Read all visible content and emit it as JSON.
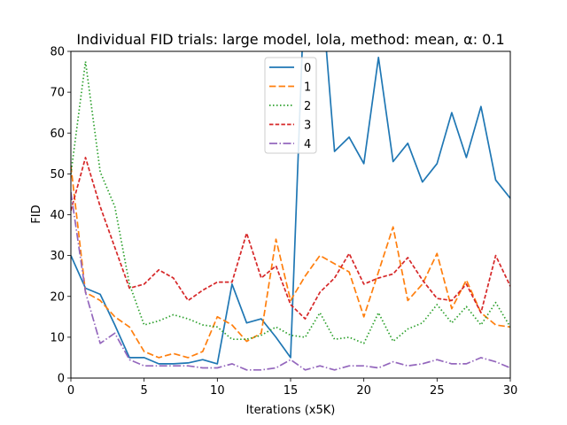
{
  "chart_data": {
    "type": "line",
    "title": "Individual FID trials: large model, lola, method: mean, α: 0.1",
    "xlabel": "Iterations (x5K)",
    "ylabel": "FID",
    "xlim": [
      0,
      30
    ],
    "ylim": [
      0,
      80
    ],
    "xticks": [
      "0",
      "5",
      "10",
      "15",
      "20",
      "25",
      "30"
    ],
    "yticks": [
      "0",
      "10",
      "20",
      "30",
      "40",
      "50",
      "60",
      "70",
      "80"
    ],
    "grid": false,
    "legend_position": "top-center",
    "x": [
      0,
      1,
      2,
      3,
      4,
      5,
      6,
      7,
      8,
      9,
      10,
      11,
      12,
      13,
      14,
      15,
      16,
      17,
      18,
      19,
      20,
      21,
      22,
      23,
      24,
      25,
      26,
      27,
      28,
      29,
      30
    ],
    "series": [
      {
        "name": "0",
        "color": "#1f77b4",
        "dash": "solid",
        "values": [
          30,
          22,
          20.5,
          13,
          5,
          5,
          3.5,
          3.5,
          3.7,
          4.5,
          3.5,
          23,
          13.5,
          14.5,
          10,
          5,
          100,
          100,
          55.5,
          59,
          52.5,
          78.5,
          53,
          57.5,
          48,
          52.5,
          65,
          54,
          66.5,
          48.5,
          44
        ]
      },
      {
        "name": "1",
        "color": "#ff7f0e",
        "dash": "dashed",
        "values": [
          52,
          21,
          19,
          15,
          12.5,
          6.5,
          5,
          6,
          5,
          6.5,
          15,
          13,
          9,
          11,
          34,
          19,
          25,
          30,
          28,
          26,
          15,
          26,
          37,
          19,
          23,
          30.5,
          17,
          24,
          16,
          13,
          12.5
        ]
      },
      {
        "name": "2",
        "color": "#2ca02c",
        "dash": "dotted",
        "values": [
          50,
          77.5,
          50.5,
          42,
          23,
          13,
          14,
          15.5,
          14.5,
          13,
          12.5,
          9.5,
          9.5,
          10.5,
          12.5,
          10.5,
          10,
          16,
          9.5,
          10,
          8.5,
          16,
          9,
          12,
          13.5,
          18,
          13.5,
          17.5,
          13,
          18.5,
          12.5
        ]
      },
      {
        "name": "3",
        "color": "#d62728",
        "dash": "dashdash",
        "values": [
          41,
          54,
          42,
          32,
          22,
          23,
          26.5,
          24.5,
          19,
          21.5,
          23.5,
          23.5,
          35.5,
          24.5,
          27.5,
          18,
          14.5,
          21,
          24.5,
          30.5,
          23,
          24.5,
          25.5,
          29.5,
          24,
          19.5,
          19,
          23,
          16,
          30,
          22.5
        ]
      },
      {
        "name": "4",
        "color": "#9467bd",
        "dash": "dashdot",
        "values": [
          45.5,
          21,
          8.5,
          11,
          4.5,
          3,
          3,
          3,
          3,
          2.5,
          2.5,
          3.5,
          2,
          2,
          2.5,
          4.5,
          2,
          3,
          2,
          3,
          3,
          2.5,
          4,
          3,
          3.5,
          4.5,
          3.5,
          3.5,
          5,
          4,
          2.5
        ]
      }
    ]
  }
}
